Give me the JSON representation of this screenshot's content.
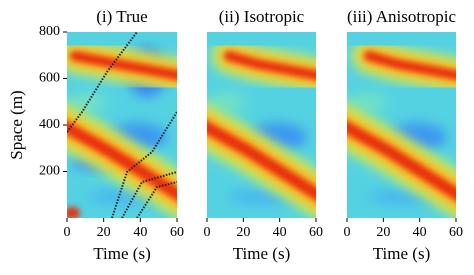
{
  "chart_data": [
    {
      "type": "heatmap",
      "title": "(i) True",
      "xlabel": "Time (s)",
      "ylabel": "Space (m)",
      "xlim": [
        0,
        60
      ],
      "xticks": [
        0,
        20,
        40,
        60
      ],
      "ylim": [
        0,
        800
      ],
      "yticks": [
        200,
        400,
        600,
        800
      ]
    },
    {
      "type": "heatmap",
      "title": "(ii) Isotropic",
      "xlabel": "Time (s)",
      "xlim": [
        0,
        60
      ],
      "xticks": [
        0,
        20,
        40,
        60
      ],
      "ylim": [
        0,
        800
      ]
    },
    {
      "type": "heatmap",
      "title": "(iii) Anisotropic",
      "xlabel": "Time (s)",
      "xlim": [
        0,
        60
      ],
      "xticks": [
        0,
        20,
        40,
        60
      ],
      "ylim": [
        0,
        800
      ]
    }
  ]
}
